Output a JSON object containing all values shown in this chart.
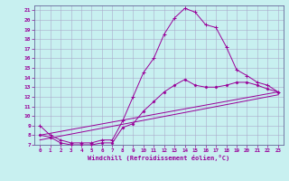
{
  "xlabel": "Windchill (Refroidissement éolien,°C)",
  "bg_color": "#c8f0f0",
  "grid_color": "#aaaacc",
  "line_color": "#990099",
  "spine_color": "#666699",
  "xlim": [
    -0.5,
    23.5
  ],
  "ylim": [
    7,
    21.5
  ],
  "yticks": [
    7,
    8,
    9,
    10,
    11,
    12,
    13,
    14,
    15,
    16,
    17,
    18,
    19,
    20,
    21
  ],
  "xticks": [
    0,
    1,
    2,
    3,
    4,
    5,
    6,
    7,
    8,
    9,
    10,
    11,
    12,
    13,
    14,
    15,
    16,
    17,
    18,
    19,
    20,
    21,
    22,
    23
  ],
  "line1_x": [
    0,
    1,
    2,
    3,
    4,
    5,
    6,
    7,
    8,
    9,
    10,
    11,
    12,
    13,
    14,
    15,
    16,
    17,
    18,
    19,
    20,
    21,
    22,
    23
  ],
  "line1_y": [
    9,
    8,
    7.5,
    7.2,
    7.2,
    7.2,
    7.5,
    7.5,
    9.5,
    12.0,
    14.5,
    16.0,
    18.5,
    20.2,
    21.2,
    20.8,
    19.5,
    19.2,
    17.2,
    14.8,
    14.2,
    13.5,
    13.2,
    12.5
  ],
  "line2_x": [
    0,
    1,
    2,
    3,
    4,
    5,
    6,
    7,
    8,
    9,
    10,
    11,
    12,
    13,
    14,
    15,
    16,
    17,
    18,
    19,
    20,
    21,
    22,
    23
  ],
  "line2_y": [
    8.0,
    7.8,
    7.2,
    7.0,
    7.0,
    7.0,
    7.2,
    7.2,
    8.8,
    9.2,
    10.5,
    11.5,
    12.5,
    13.2,
    13.8,
    13.2,
    13.0,
    13.0,
    13.2,
    13.5,
    13.5,
    13.2,
    12.8,
    12.5
  ],
  "line3_x": [
    0,
    23
  ],
  "line3_y": [
    8.0,
    12.5
  ],
  "line4_x": [
    0,
    23
  ],
  "line4_y": [
    7.5,
    12.2
  ]
}
